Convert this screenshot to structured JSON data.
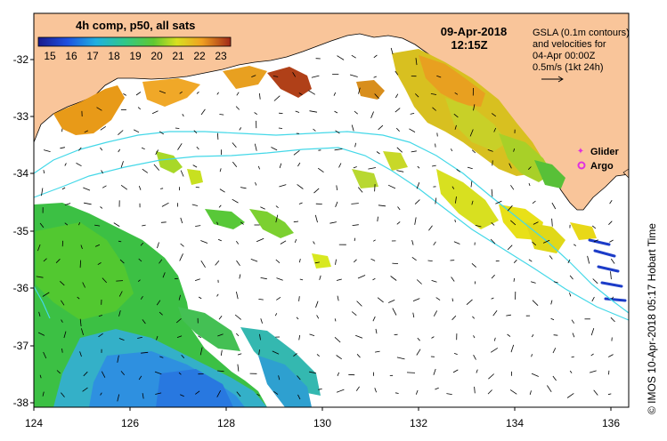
{
  "map": {
    "colorbar_title": "4h comp, p50, all sats",
    "colorbar_ticks": [
      "15",
      "16",
      "17",
      "18",
      "19",
      "20",
      "21",
      "22",
      "23"
    ],
    "date": "09-Apr-2018",
    "time": "12:15Z",
    "gsla_lines": [
      "GSLA (0.1m contours)",
      "and velocities for",
      "04-Apr 00:00Z",
      "0.5m/s (1kt 24h)"
    ],
    "legend": {
      "glider": "Glider",
      "argo": "Argo"
    },
    "credit": "© IMOS 10-Apr-2018 05:17 Hobart Time",
    "lat_ticks": [
      "-32",
      "-33",
      "-34",
      "-35",
      "-36",
      "-37",
      "-38"
    ],
    "lon_ticks": [
      "124",
      "126",
      "128",
      "130",
      "132",
      "134",
      "136"
    ],
    "colors": {
      "land": "#F9C59A",
      "contour": "#44D8E8",
      "warm": "#E8951A",
      "hot": "#A83A18",
      "yellow": "#E8E81A",
      "green": "#38C038",
      "cool": "#2FA8E0",
      "blue_obs": "#1C3CC8",
      "glider": "#E030E0",
      "argo": "#E030E0"
    }
  }
}
